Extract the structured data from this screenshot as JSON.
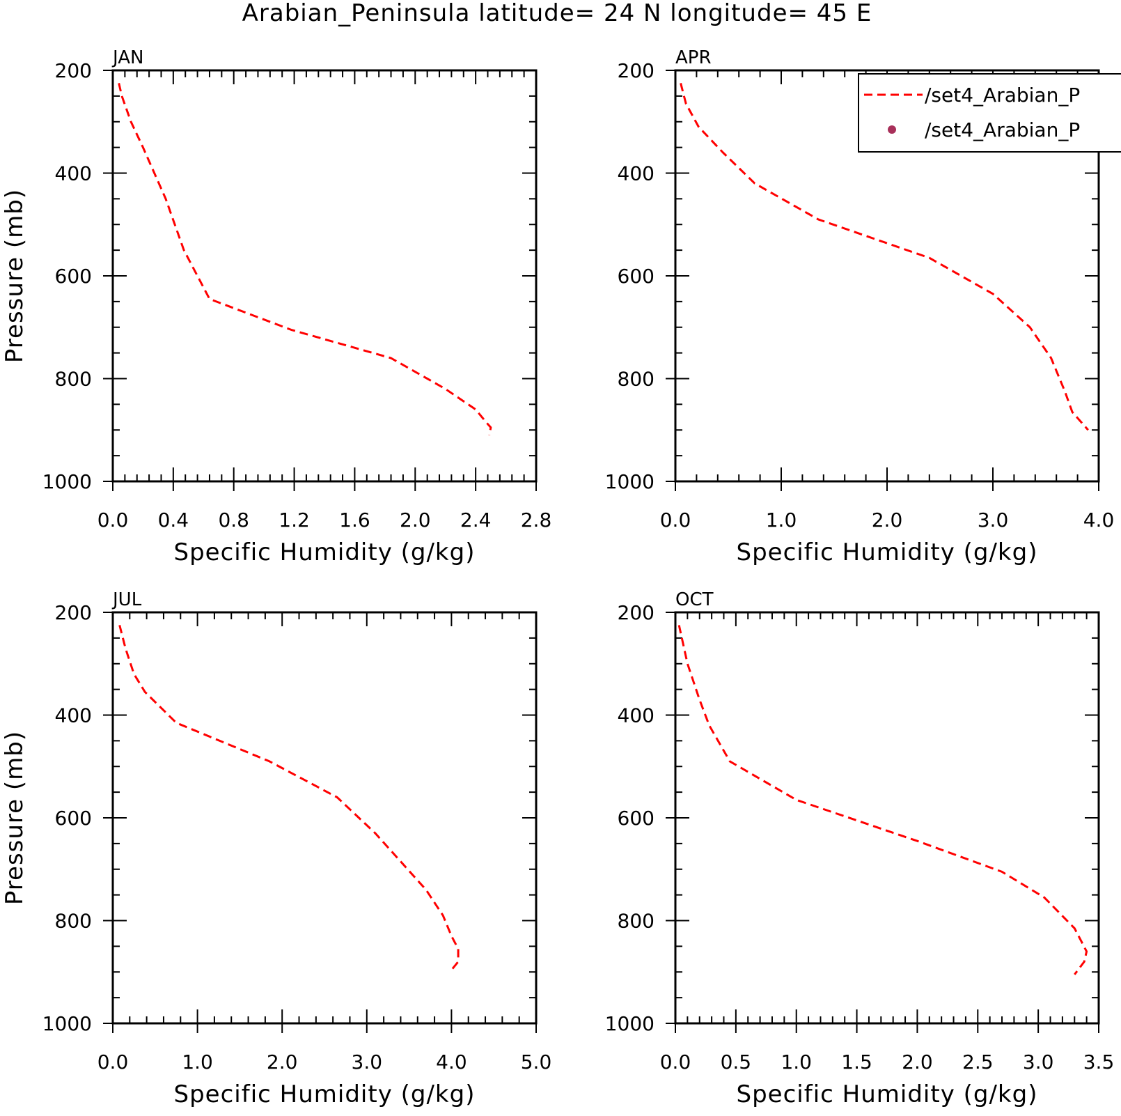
{
  "title": "Arabian_Peninsula  latitude= 24 N longitude= 45 E",
  "chart_data": [
    {
      "type": "line",
      "panel_label": "JAN",
      "xlabel": "Specific Humidity (g/kg)",
      "ylabel": "Pressure (mb)",
      "xlim": [
        0.0,
        2.8
      ],
      "ylim": [
        200,
        1000
      ],
      "y_inverted": true,
      "xticks": [
        "0.0",
        "0.4",
        "0.8",
        "1.2",
        "1.6",
        "2.0",
        "2.4",
        "2.8"
      ],
      "yticks": [
        "200",
        "400",
        "600",
        "800",
        "1000"
      ],
      "series": [
        {
          "color": "#ff0000",
          "style": "dashed",
          "x": [
            0.04,
            0.06,
            0.12,
            0.2,
            0.35,
            0.47,
            0.64,
            1.18,
            1.84,
            2.2,
            2.4,
            2.47,
            2.5,
            2.49
          ],
          "y": [
            225,
            250,
            300,
            350,
            450,
            550,
            645,
            705,
            760,
            820,
            860,
            885,
            895,
            910
          ]
        }
      ]
    },
    {
      "type": "line",
      "panel_label": "APR",
      "xlabel": "Specific Humidity (g/kg)",
      "ylabel": "",
      "xlim": [
        0.0,
        4.0
      ],
      "ylim": [
        200,
        1000
      ],
      "y_inverted": true,
      "xticks": [
        "0.0",
        "1.0",
        "2.0",
        "3.0",
        "4.0"
      ],
      "yticks": [
        "200",
        "400",
        "600",
        "800",
        "1000"
      ],
      "legend": {
        "position": "top-right",
        "entries": [
          {
            "label": "/set4_Arabian_P",
            "marker": "dashed-line",
            "color": "#ff0000"
          },
          {
            "label": "/set4_Arabian_P",
            "marker": "dot",
            "color": "#a8305a"
          }
        ]
      },
      "series": [
        {
          "color": "#ff0000",
          "style": "dashed",
          "x": [
            0.05,
            0.1,
            0.22,
            0.45,
            0.75,
            1.35,
            2.4,
            3.0,
            3.35,
            3.55,
            3.68,
            3.75,
            3.9
          ],
          "y": [
            225,
            265,
            310,
            360,
            420,
            490,
            565,
            635,
            700,
            760,
            825,
            865,
            900
          ]
        }
      ]
    },
    {
      "type": "line",
      "panel_label": "JUL",
      "xlabel": "Specific Humidity (g/kg)",
      "ylabel": "Pressure (mb)",
      "xlim": [
        0.0,
        5.0
      ],
      "ylim": [
        200,
        1000
      ],
      "y_inverted": true,
      "xticks": [
        "0.0",
        "1.0",
        "2.0",
        "3.0",
        "4.0",
        "5.0"
      ],
      "yticks": [
        "200",
        "400",
        "600",
        "800",
        "1000"
      ],
      "series": [
        {
          "color": "#ff0000",
          "style": "dashed",
          "x": [
            0.08,
            0.15,
            0.25,
            0.38,
            0.75,
            1.85,
            2.65,
            3.1,
            3.7,
            3.9,
            4.0,
            4.08,
            4.08,
            3.98
          ],
          "y": [
            225,
            270,
            320,
            355,
            415,
            490,
            560,
            630,
            740,
            790,
            830,
            855,
            880,
            900
          ]
        }
      ]
    },
    {
      "type": "line",
      "panel_label": "OCT",
      "xlabel": "Specific Humidity (g/kg)",
      "ylabel": "",
      "xlim": [
        0.0,
        3.5
      ],
      "ylim": [
        200,
        1000
      ],
      "y_inverted": true,
      "xticks": [
        "0.0",
        "0.5",
        "1.0",
        "1.5",
        "2.0",
        "2.5",
        "3.0",
        "3.5"
      ],
      "yticks": [
        "200",
        "400",
        "600",
        "800",
        "1000"
      ],
      "series": [
        {
          "color": "#ff0000",
          "style": "dashed",
          "x": [
            0.03,
            0.1,
            0.2,
            0.28,
            0.45,
            1.0,
            2.0,
            2.7,
            3.05,
            3.3,
            3.4,
            3.38,
            3.3
          ],
          "y": [
            225,
            300,
            370,
            420,
            490,
            565,
            645,
            705,
            755,
            815,
            860,
            880,
            905
          ]
        }
      ]
    }
  ]
}
